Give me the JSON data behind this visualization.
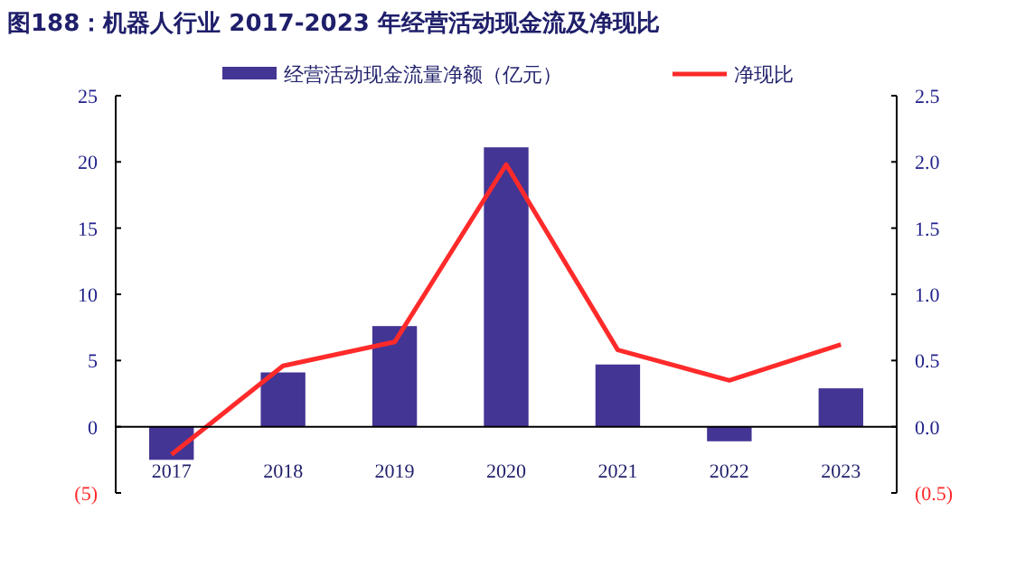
{
  "chart_data": {
    "type": "bar",
    "title": "图188：机器人行业 2017-2023 年经营活动现金流及净现比",
    "categories": [
      "2017",
      "2018",
      "2019",
      "2020",
      "2021",
      "2022",
      "2023"
    ],
    "series": [
      {
        "name": "经营活动现金流量净额（亿元）",
        "type": "bar",
        "color": "#433594",
        "values": [
          -2.5,
          4.1,
          7.6,
          21.1,
          4.7,
          -1.1,
          2.9
        ]
      },
      {
        "name": "净现比",
        "type": "line",
        "axis": "y2",
        "color": "#ff2a2a",
        "values": [
          -0.21,
          0.46,
          0.64,
          1.98,
          0.58,
          0.35,
          0.62
        ]
      }
    ],
    "ylim": [
      -5,
      25
    ],
    "yticks": [
      {
        "value": -5,
        "label": "(5)"
      },
      0,
      5,
      10,
      15,
      20,
      25
    ],
    "y2lim": [
      -0.5,
      2.5
    ],
    "y2ticks": [
      {
        "value": -0.5,
        "label": "(0.5)"
      },
      {
        "value": 0,
        "label": "0.0"
      },
      {
        "value": 0.5,
        "label": "0.5"
      },
      {
        "value": 1,
        "label": "1.0"
      },
      {
        "value": 1.5,
        "label": "1.5"
      },
      {
        "value": 2,
        "label": "2.0"
      },
      {
        "value": 2.5,
        "label": "2.5"
      }
    ],
    "legend": "top",
    "grid": false
  }
}
